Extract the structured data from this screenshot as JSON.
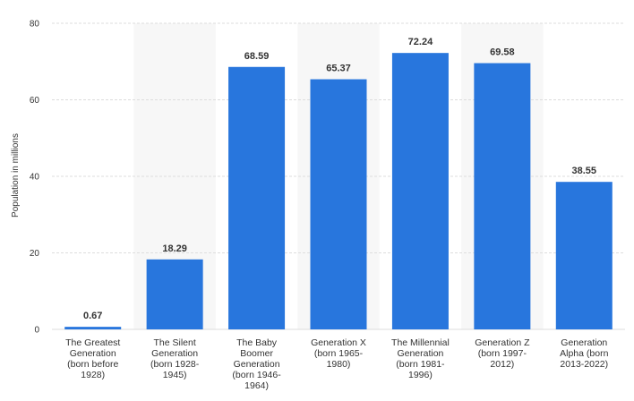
{
  "chart_data": {
    "type": "bar",
    "ylabel": "Population in millions",
    "ylim": [
      0,
      80
    ],
    "yticks": [
      0,
      20,
      40,
      60,
      80
    ],
    "categories": [
      "The Greatest Generation (born before 1928)",
      "The Silent Generation (born 1928-1945)",
      "The Baby Boomer Generation (born 1946-1964)",
      "Generation X (born 1965-1980)",
      "The Millennial Generation (born 1981-1996)",
      "Generation Z (born 1997-2012)",
      "Generation Alpha (born 2013-2022)"
    ],
    "category_lines": [
      [
        "The Greatest",
        "Generation",
        "(born before",
        "1928)"
      ],
      [
        "The Silent",
        "Generation",
        "(born 1928-",
        "1945)"
      ],
      [
        "The Baby",
        "Boomer",
        "Generation",
        "(born 1946-",
        "1964)"
      ],
      [
        "Generation X",
        "(born 1965-",
        "1980)"
      ],
      [
        "The Millennial",
        "Generation",
        "(born 1981-",
        "1996)"
      ],
      [
        "Generation Z",
        "(born 1997-",
        "2012)"
      ],
      [
        "Generation",
        "Alpha (born",
        "2013-2022)"
      ]
    ],
    "values": [
      0.67,
      18.29,
      68.59,
      65.37,
      72.24,
      69.58,
      38.55
    ],
    "value_labels": [
      "0.67",
      "18.29",
      "68.59",
      "65.37",
      "72.24",
      "69.58",
      "38.55"
    ],
    "grid": true,
    "bar_color": "#2876dd",
    "alt_band_color": "#f7f7f7",
    "grid_color": "#dddddd"
  }
}
